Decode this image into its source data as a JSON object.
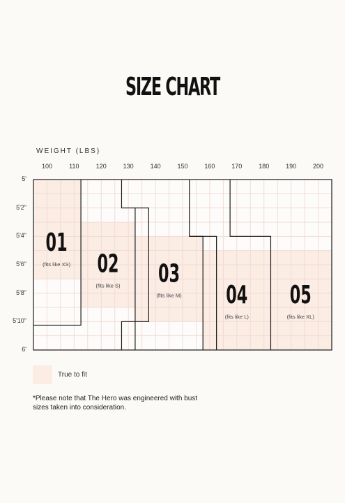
{
  "chart_data": {
    "type": "table",
    "title": "SIZE CHART",
    "xlabel": "WEIGHT (LBS)",
    "x_ticks": [
      "100",
      "110",
      "120",
      "130",
      "140",
      "150",
      "160",
      "170",
      "180",
      "190",
      "200"
    ],
    "y_ticks": [
      "5'",
      "5'2\"",
      "5'4\"",
      "5'6\"",
      "5'8\"",
      "5'10\"",
      "6'"
    ],
    "xlim": [
      95,
      205
    ],
    "ylim_inches": [
      60,
      72
    ],
    "grid": true,
    "sizes": [
      {
        "number": "01",
        "fit": "(fits like XS)",
        "weight_range": [
          95,
          112.5
        ],
        "height_range_in": [
          60,
          67
        ]
      },
      {
        "number": "02",
        "fit": "(fits like S)",
        "weight_range": [
          112.5,
          132.5
        ],
        "height_range_in": [
          63,
          69
        ]
      },
      {
        "number": "03",
        "fit": "(fits like M)",
        "weight_range": [
          132.5,
          157.5
        ],
        "height_range_in": [
          64,
          70
        ]
      },
      {
        "number": "04",
        "fit": "(fits like L)",
        "weight_range": [
          157.5,
          182.5
        ],
        "height_range_in": [
          65,
          72
        ]
      },
      {
        "number": "05",
        "fit": "(fits like XL)",
        "weight_range": [
          182.5,
          205
        ],
        "height_range_in": [
          65,
          72
        ]
      }
    ]
  },
  "legend": {
    "label": "True to fit",
    "color": "#fbece4"
  },
  "note": "*Please note that The Hero was engineered with bust sizes taken into consideration."
}
